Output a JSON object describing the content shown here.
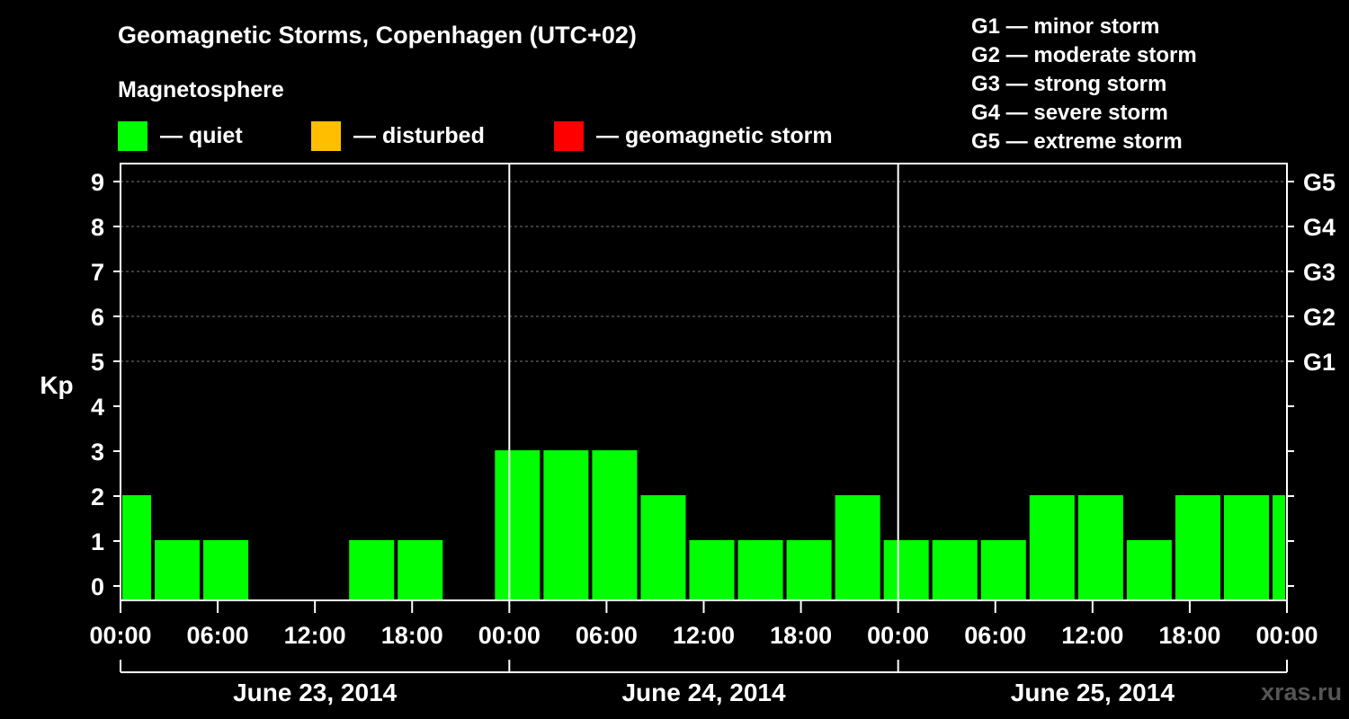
{
  "header": {
    "title": "Geomagnetic Storms, Copenhagen (UTC+02)",
    "subtitle": "Magnetosphere"
  },
  "legend": [
    {
      "label": "— quiet",
      "color": "#00ff00"
    },
    {
      "label": "— disturbed",
      "color": "#ffbf00"
    },
    {
      "label": "— geomagnetic storm",
      "color": "#ff0000"
    }
  ],
  "storm_scale": [
    {
      "code": "G1",
      "text": "G1 — minor storm"
    },
    {
      "code": "G2",
      "text": "G2 — moderate storm"
    },
    {
      "code": "G3",
      "text": "G3 — strong storm"
    },
    {
      "code": "G4",
      "text": "G4 — severe storm"
    },
    {
      "code": "G5",
      "text": "G5 — extreme storm"
    }
  ],
  "watermark": "xras.ru",
  "chart_data": {
    "type": "bar",
    "title": "Geomagnetic Storms, Copenhagen (UTC+02)",
    "ylabel": "Kp",
    "ylim": [
      0,
      9
    ],
    "yticks": [
      "0",
      "1",
      "2",
      "3",
      "4",
      "5",
      "6",
      "7",
      "8",
      "9"
    ],
    "right_axis": [
      {
        "kp": 5,
        "label": "G1"
      },
      {
        "kp": 6,
        "label": "G2"
      },
      {
        "kp": 7,
        "label": "G3"
      },
      {
        "kp": 8,
        "label": "G4"
      },
      {
        "kp": 9,
        "label": "G5"
      }
    ],
    "x_range_hours": [
      0,
      72
    ],
    "xticks": [
      {
        "hour": 0,
        "label": "00:00"
      },
      {
        "hour": 6,
        "label": "06:00"
      },
      {
        "hour": 12,
        "label": "12:00"
      },
      {
        "hour": 18,
        "label": "18:00"
      },
      {
        "hour": 24,
        "label": "00:00"
      },
      {
        "hour": 30,
        "label": "06:00"
      },
      {
        "hour": 36,
        "label": "12:00"
      },
      {
        "hour": 42,
        "label": "18:00"
      },
      {
        "hour": 48,
        "label": "00:00"
      },
      {
        "hour": 54,
        "label": "06:00"
      },
      {
        "hour": 60,
        "label": "12:00"
      },
      {
        "hour": 66,
        "label": "18:00"
      },
      {
        "hour": 72,
        "label": "00:00"
      }
    ],
    "days": [
      {
        "label": "June 23, 2014",
        "start_hour": 0,
        "end_hour": 24
      },
      {
        "label": "June 24, 2014",
        "start_hour": 24,
        "end_hour": 48
      },
      {
        "label": "June 25, 2014",
        "start_hour": 48,
        "end_hour": 72
      }
    ],
    "series": [
      {
        "name": "Kp",
        "bars": [
          {
            "start_hour": 0,
            "end_hour": 2,
            "kp": 2
          },
          {
            "start_hour": 2,
            "end_hour": 5,
            "kp": 1
          },
          {
            "start_hour": 5,
            "end_hour": 8,
            "kp": 1
          },
          {
            "start_hour": 8,
            "end_hour": 11,
            "kp": 0
          },
          {
            "start_hour": 11,
            "end_hour": 14,
            "kp": 0
          },
          {
            "start_hour": 14,
            "end_hour": 17,
            "kp": 1
          },
          {
            "start_hour": 17,
            "end_hour": 20,
            "kp": 1
          },
          {
            "start_hour": 20,
            "end_hour": 23,
            "kp": 0
          },
          {
            "start_hour": 23,
            "end_hour": 26,
            "kp": 3
          },
          {
            "start_hour": 26,
            "end_hour": 29,
            "kp": 3
          },
          {
            "start_hour": 29,
            "end_hour": 32,
            "kp": 3
          },
          {
            "start_hour": 32,
            "end_hour": 35,
            "kp": 2
          },
          {
            "start_hour": 35,
            "end_hour": 38,
            "kp": 1
          },
          {
            "start_hour": 38,
            "end_hour": 41,
            "kp": 1
          },
          {
            "start_hour": 41,
            "end_hour": 44,
            "kp": 1
          },
          {
            "start_hour": 44,
            "end_hour": 47,
            "kp": 2
          },
          {
            "start_hour": 47,
            "end_hour": 50,
            "kp": 1
          },
          {
            "start_hour": 50,
            "end_hour": 53,
            "kp": 1
          },
          {
            "start_hour": 53,
            "end_hour": 56,
            "kp": 1
          },
          {
            "start_hour": 56,
            "end_hour": 59,
            "kp": 2
          },
          {
            "start_hour": 59,
            "end_hour": 62,
            "kp": 2
          },
          {
            "start_hour": 62,
            "end_hour": 65,
            "kp": 1
          },
          {
            "start_hour": 65,
            "end_hour": 68,
            "kp": 2
          },
          {
            "start_hour": 68,
            "end_hour": 71,
            "kp": 2
          },
          {
            "start_hour": 71,
            "end_hour": 72,
            "kp": 2
          }
        ]
      }
    ],
    "colors": {
      "quiet": "#00ff00",
      "disturbed": "#ffbf00",
      "storm": "#ff0000"
    },
    "grid": true
  }
}
